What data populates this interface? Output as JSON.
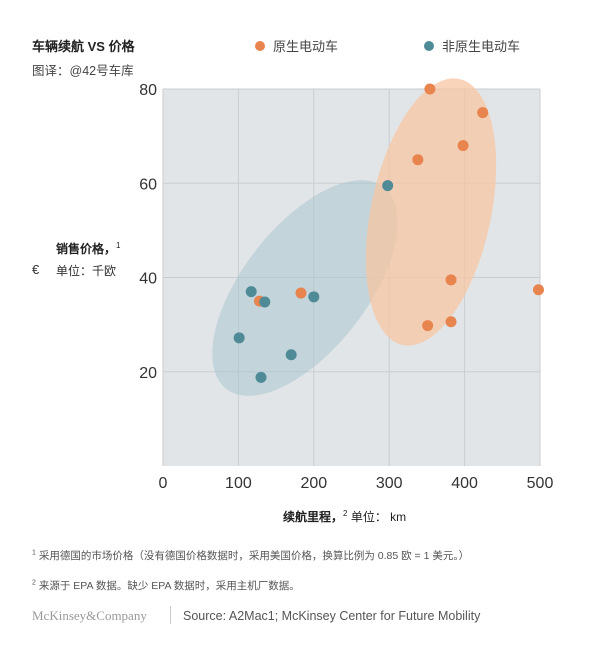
{
  "chart_data": {
    "type": "scatter",
    "title": "车辆续航 VS 价格",
    "subtitle": "图译：@42号车库",
    "xlabel": "续航里程，",
    "xlabel_sup": "2",
    "xunit": "单位：  km",
    "ylabel": "销售价格，",
    "ylabel_sup": "1",
    "yunit": "单位：千欧",
    "ycurrency": "€",
    "xlim": [
      0,
      500
    ],
    "ylim": [
      0,
      80
    ],
    "xticks": [
      0,
      100,
      200,
      300,
      400,
      500
    ],
    "yticks": [
      20,
      40,
      60,
      80
    ],
    "grid": true,
    "legend_position": "top",
    "series": [
      {
        "name": "原生电动车",
        "color": "#e8844e",
        "points": [
          [
            354,
            80
          ],
          [
            424,
            75
          ],
          [
            338,
            65
          ],
          [
            398,
            68
          ],
          [
            382,
            39.5
          ],
          [
            498,
            37.4
          ],
          [
            351,
            29.8
          ],
          [
            382,
            30.6
          ],
          [
            183,
            36.7
          ],
          [
            128,
            35
          ]
        ]
      },
      {
        "name": "非原生电动车",
        "color": "#4f8a97",
        "points": [
          [
            298,
            59.5
          ],
          [
            117,
            37
          ],
          [
            135,
            34.8
          ],
          [
            200,
            35.9
          ],
          [
            101,
            27.2
          ],
          [
            170,
            23.6
          ],
          [
            130,
            18.8
          ]
        ]
      }
    ]
  },
  "footnotes": [
    {
      "mark": "1",
      "text": "采用德国的市场价格（没有德国价格数据时，采用美国价格，换算比例为 0.85 欧 = 1 美元。）"
    },
    {
      "mark": "2",
      "text": "来源于 EPA 数据。缺少 EPA 数据时，采用主机厂数据。"
    }
  ],
  "brand": "McKinsey&Company",
  "source": "Source: A2Mac1; McKinsey Center for Future Mobility"
}
